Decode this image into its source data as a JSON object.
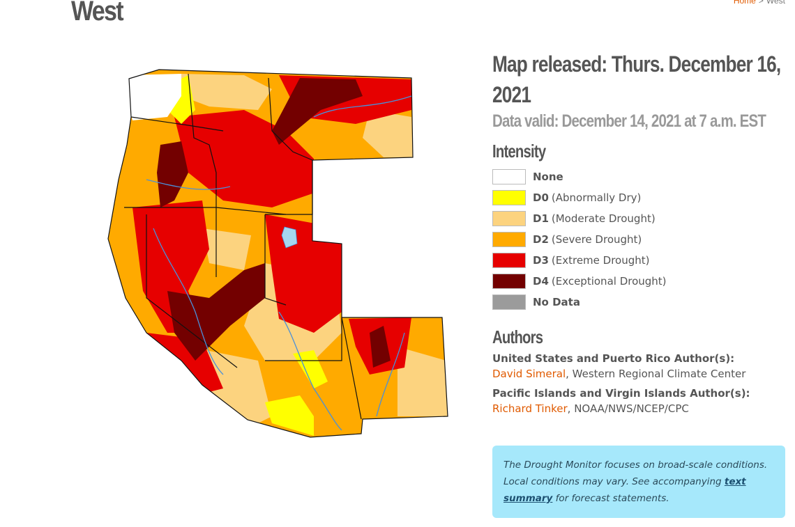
{
  "page": {
    "title": "West",
    "breadcrumb": {
      "home": "Home",
      "separator": ">",
      "current": "West"
    }
  },
  "release": {
    "released": "Map released: Thurs. December 16, 2021",
    "valid": "Data valid: December 14, 2021 at 7 a.m. EST"
  },
  "legend": {
    "title": "Intensity",
    "items": [
      {
        "code": "None",
        "desc": "",
        "color": "#ffffff"
      },
      {
        "code": "D0",
        "desc": "(Abnormally Dry)",
        "color": "#ffff00"
      },
      {
        "code": "D1",
        "desc": "(Moderate Drought)",
        "color": "#fcd37f"
      },
      {
        "code": "D2",
        "desc": "(Severe Drought)",
        "color": "#ffaa00"
      },
      {
        "code": "D3",
        "desc": "(Extreme Drought)",
        "color": "#e60000"
      },
      {
        "code": "D4",
        "desc": "(Exceptional Drought)",
        "color": "#730000"
      },
      {
        "code": "No Data",
        "desc": "",
        "color": "#9b9b9b"
      }
    ]
  },
  "authors": {
    "title": "Authors",
    "us_label": "United States and Puerto Rico Author(s):",
    "us_name": "David Simeral",
    "us_org": ", Western Regional Climate Center",
    "pi_label": "Pacific Islands and Virgin Islands Author(s):",
    "pi_name": "Richard Tinker",
    "pi_org": ", NOAA/NWS/NCEP/CPC"
  },
  "note": {
    "text_before": "The Drought Monitor focuses on broad-scale conditions. Local conditions may vary. See accompanying ",
    "link": "text summary",
    "text_after": " for forecast statements."
  }
}
